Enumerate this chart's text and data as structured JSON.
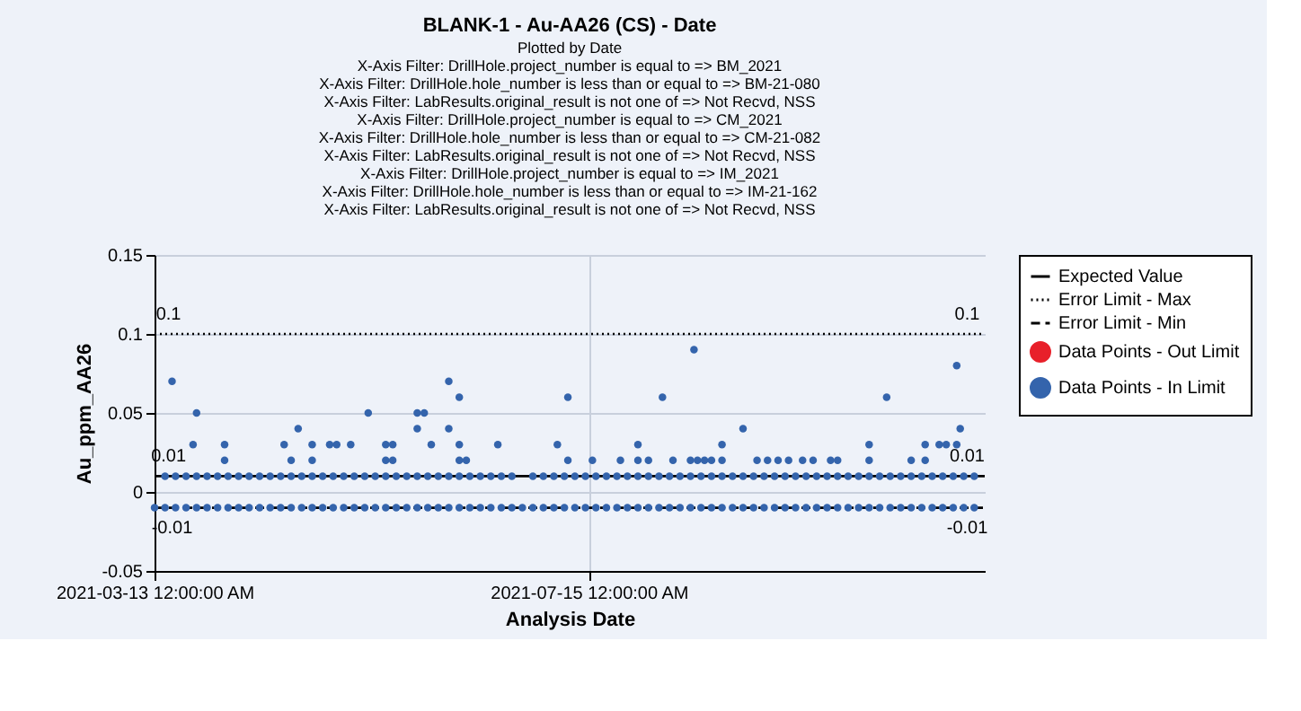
{
  "chart_data": {
    "type": "scatter",
    "title": "BLANK-1 - Au-AA26 (CS) - Date",
    "subtitle": "Plotted by Date",
    "xlabel": "Analysis Date",
    "ylabel": "Au_ppm_AA26",
    "xlim": [
      "2021-03-13",
      "2021-11-05"
    ],
    "xticks": [
      {
        "value": "2021-03-13",
        "label": "2021-03-13 12:00:00 AM"
      },
      {
        "value": "2021-07-15",
        "label": "2021-07-15 12:00:00 AM"
      }
    ],
    "ylim": [
      -0.05,
      0.15
    ],
    "yticks": [
      -0.05,
      0,
      0.05,
      0.1,
      0.15
    ],
    "grid": true,
    "legend": "right",
    "marker": "circle",
    "annotations": [
      "X-Axis Filter: DrillHole.project_number is equal to => BM_2021",
      "X-Axis Filter: DrillHole.hole_number is less than or equal to => BM-21-080",
      "X-Axis Filter: LabResults.original_result is not one of => Not Recvd, NSS",
      "X-Axis Filter: DrillHole.project_number is equal to => CM_2021",
      "X-Axis Filter: DrillHole.hole_number is less than or equal to => CM-21-082",
      "X-Axis Filter: LabResults.original_result is not one of => Not Recvd, NSS",
      "X-Axis Filter: DrillHole.project_number is equal to => IM_2021",
      "X-Axis Filter: DrillHole.hole_number is less than or equal to => IM-21-162",
      "X-Axis Filter: LabResults.original_result is not one of => Not Recvd, NSS",
      {
        "text": "0.1",
        "x": "2021-03-17",
        "y": 0.1
      },
      {
        "text": "0.1",
        "x": "2021-10-31",
        "y": 0.1
      },
      {
        "text": "0.01",
        "x": "2021-03-17",
        "y": 0.01
      },
      {
        "text": "0.01",
        "x": "2021-10-31",
        "y": 0.01
      },
      {
        "text": "-0.01",
        "x": "2021-03-18",
        "y": -0.01
      },
      {
        "text": "-0.01",
        "x": "2021-10-31",
        "y": -0.01
      }
    ],
    "series": [
      {
        "name": "Expected Value",
        "type": "line",
        "line_style": "solid",
        "marker": "none",
        "color": "#000000",
        "x": [
          "2021-03-13",
          "2021-11-05"
        ],
        "values": [
          0.01,
          0.01
        ]
      },
      {
        "name": "Error Limit - Max",
        "type": "line",
        "line_style": "dotted",
        "marker": "none",
        "color": "#000000",
        "x": [
          "2021-03-13",
          "2021-11-05"
        ],
        "values": [
          0.1,
          0.1
        ]
      },
      {
        "name": "Error Limit - Min",
        "type": "line",
        "line_style": "dashed",
        "marker": "none",
        "color": "#000000",
        "x": [
          "2021-03-13",
          "2021-11-05"
        ],
        "values": [
          -0.01,
          -0.01
        ]
      },
      {
        "name": "Data Points - Out Limit",
        "color": "#e8202a"
      },
      {
        "name": "Data Points - In Limit",
        "color": "#3464ac",
        "x": [
          "2021-03-13",
          "2021-03-16",
          "2021-03-19",
          "2021-03-22",
          "2021-03-25",
          "2021-03-28",
          "2021-03-31",
          "2021-04-03",
          "2021-04-06",
          "2021-04-09",
          "2021-04-12",
          "2021-04-15",
          "2021-04-18",
          "2021-04-21",
          "2021-04-24",
          "2021-04-27",
          "2021-04-30",
          "2021-05-03",
          "2021-05-06",
          "2021-05-09",
          "2021-05-12",
          "2021-05-15",
          "2021-05-18",
          "2021-05-21",
          "2021-05-24",
          "2021-05-27",
          "2021-05-30",
          "2021-06-02",
          "2021-06-05",
          "2021-06-08",
          "2021-06-11",
          "2021-06-14",
          "2021-06-17",
          "2021-06-20",
          "2021-06-23",
          "2021-06-26",
          "2021-06-29",
          "2021-07-02",
          "2021-07-05",
          "2021-07-08",
          "2021-07-11",
          "2021-07-14",
          "2021-07-17",
          "2021-07-20",
          "2021-07-23",
          "2021-07-26",
          "2021-07-29",
          "2021-08-01",
          "2021-08-04",
          "2021-08-07",
          "2021-08-10",
          "2021-08-13",
          "2021-08-16",
          "2021-08-19",
          "2021-08-22",
          "2021-08-25",
          "2021-08-28",
          "2021-08-31",
          "2021-09-03",
          "2021-09-06",
          "2021-09-09",
          "2021-09-12",
          "2021-09-15",
          "2021-09-18",
          "2021-09-21",
          "2021-09-24",
          "2021-09-27",
          "2021-09-30",
          "2021-10-03",
          "2021-10-06",
          "2021-10-09",
          "2021-10-12",
          "2021-10-15",
          "2021-10-18",
          "2021-10-21",
          "2021-10-24",
          "2021-10-27",
          "2021-10-30",
          "2021-11-02",
          "2021-03-16",
          "2021-03-19",
          "2021-03-22",
          "2021-03-25",
          "2021-03-28",
          "2021-03-31",
          "2021-04-03",
          "2021-04-06",
          "2021-04-09",
          "2021-04-12",
          "2021-04-15",
          "2021-04-18",
          "2021-04-21",
          "2021-04-24",
          "2021-04-27",
          "2021-04-30",
          "2021-05-03",
          "2021-05-06",
          "2021-05-09",
          "2021-05-12",
          "2021-05-15",
          "2021-05-18",
          "2021-05-21",
          "2021-05-24",
          "2021-05-27",
          "2021-05-30",
          "2021-06-02",
          "2021-06-05",
          "2021-06-08",
          "2021-06-11",
          "2021-06-14",
          "2021-06-17",
          "2021-06-20",
          "2021-06-23",
          "2021-06-29",
          "2021-07-02",
          "2021-07-05",
          "2021-07-08",
          "2021-07-11",
          "2021-07-14",
          "2021-07-17",
          "2021-07-20",
          "2021-07-23",
          "2021-07-26",
          "2021-07-29",
          "2021-08-01",
          "2021-08-04",
          "2021-08-07",
          "2021-08-10",
          "2021-08-13",
          "2021-08-16",
          "2021-08-19",
          "2021-08-22",
          "2021-08-25",
          "2021-08-28",
          "2021-08-31",
          "2021-09-03",
          "2021-09-06",
          "2021-09-09",
          "2021-09-12",
          "2021-09-15",
          "2021-09-18",
          "2021-09-21",
          "2021-09-24",
          "2021-09-27",
          "2021-09-30",
          "2021-10-03",
          "2021-10-06",
          "2021-10-09",
          "2021-10-12",
          "2021-10-15",
          "2021-10-18",
          "2021-10-21",
          "2021-10-24",
          "2021-10-27",
          "2021-10-30",
          "2021-11-02",
          "2021-03-18",
          "2021-03-24",
          "2021-03-25",
          "2021-04-02",
          "2021-04-02",
          "2021-04-19",
          "2021-04-21",
          "2021-04-23",
          "2021-04-27",
          "2021-04-27",
          "2021-05-02",
          "2021-05-04",
          "2021-05-08",
          "2021-05-13",
          "2021-05-18",
          "2021-05-18",
          "2021-05-20",
          "2021-05-20",
          "2021-05-27",
          "2021-05-27",
          "2021-05-29",
          "2021-05-31",
          "2021-06-05",
          "2021-06-05",
          "2021-06-08",
          "2021-06-08",
          "2021-06-08",
          "2021-06-10",
          "2021-06-19",
          "2021-07-06",
          "2021-07-09",
          "2021-07-09",
          "2021-07-16",
          "2021-07-24",
          "2021-07-29",
          "2021-07-29",
          "2021-08-01",
          "2021-08-05",
          "2021-08-08",
          "2021-08-13",
          "2021-08-14",
          "2021-08-15",
          "2021-08-17",
          "2021-08-19",
          "2021-08-22",
          "2021-08-22",
          "2021-08-28",
          "2021-09-01",
          "2021-09-04",
          "2021-09-07",
          "2021-09-10",
          "2021-09-14",
          "2021-09-17",
          "2021-09-22",
          "2021-09-24",
          "2021-10-03",
          "2021-10-03",
          "2021-10-08",
          "2021-10-15",
          "2021-10-19",
          "2021-10-19",
          "2021-10-23",
          "2021-10-25",
          "2021-10-28",
          "2021-10-28",
          "2021-10-29"
        ],
        "values": [
          -0.01,
          -0.01,
          -0.01,
          -0.01,
          -0.01,
          -0.01,
          -0.01,
          -0.01,
          -0.01,
          -0.01,
          -0.01,
          -0.01,
          -0.01,
          -0.01,
          -0.01,
          -0.01,
          -0.01,
          -0.01,
          -0.01,
          -0.01,
          -0.01,
          -0.01,
          -0.01,
          -0.01,
          -0.01,
          -0.01,
          -0.01,
          -0.01,
          -0.01,
          -0.01,
          -0.01,
          -0.01,
          -0.01,
          -0.01,
          -0.01,
          -0.01,
          -0.01,
          -0.01,
          -0.01,
          -0.01,
          -0.01,
          -0.01,
          -0.01,
          -0.01,
          -0.01,
          -0.01,
          -0.01,
          -0.01,
          -0.01,
          -0.01,
          -0.01,
          -0.01,
          -0.01,
          -0.01,
          -0.01,
          -0.01,
          -0.01,
          -0.01,
          -0.01,
          -0.01,
          -0.01,
          -0.01,
          -0.01,
          -0.01,
          -0.01,
          -0.01,
          -0.01,
          -0.01,
          -0.01,
          -0.01,
          -0.01,
          -0.01,
          -0.01,
          -0.01,
          -0.01,
          -0.01,
          -0.01,
          -0.01,
          -0.01,
          0.01,
          0.01,
          0.01,
          0.01,
          0.01,
          0.01,
          0.01,
          0.01,
          0.01,
          0.01,
          0.01,
          0.01,
          0.01,
          0.01,
          0.01,
          0.01,
          0.01,
          0.01,
          0.01,
          0.01,
          0.01,
          0.01,
          0.01,
          0.01,
          0.01,
          0.01,
          0.01,
          0.01,
          0.01,
          0.01,
          0.01,
          0.01,
          0.01,
          0.01,
          0.01,
          0.01,
          0.01,
          0.01,
          0.01,
          0.01,
          0.01,
          0.01,
          0.01,
          0.01,
          0.01,
          0.01,
          0.01,
          0.01,
          0.01,
          0.01,
          0.01,
          0.01,
          0.01,
          0.01,
          0.01,
          0.01,
          0.01,
          0.01,
          0.01,
          0.01,
          0.01,
          0.01,
          0.01,
          0.01,
          0.01,
          0.01,
          0.01,
          0.01,
          0.01,
          0.01,
          0.01,
          0.01,
          0.01,
          0.01,
          0.01,
          0.01,
          0.01,
          0.07,
          0.03,
          0.05,
          0.03,
          0.02,
          0.03,
          0.02,
          0.04,
          0.03,
          0.02,
          0.03,
          0.03,
          0.03,
          0.05,
          0.03,
          0.02,
          0.03,
          0.02,
          0.05,
          0.04,
          0.05,
          0.03,
          0.07,
          0.04,
          0.06,
          0.03,
          0.02,
          0.02,
          0.03,
          0.03,
          0.06,
          0.02,
          0.02,
          0.02,
          0.03,
          0.02,
          0.02,
          0.06,
          0.02,
          0.02,
          0.09,
          0.02,
          0.02,
          0.02,
          0.03,
          0.02,
          0.04,
          0.02,
          0.02,
          0.02,
          0.02,
          0.02,
          0.02,
          0.02,
          0.02,
          0.03,
          0.02,
          0.06,
          0.02,
          0.03,
          0.02,
          0.03,
          0.03,
          0.08,
          0.03,
          0.04
        ]
      }
    ]
  }
}
